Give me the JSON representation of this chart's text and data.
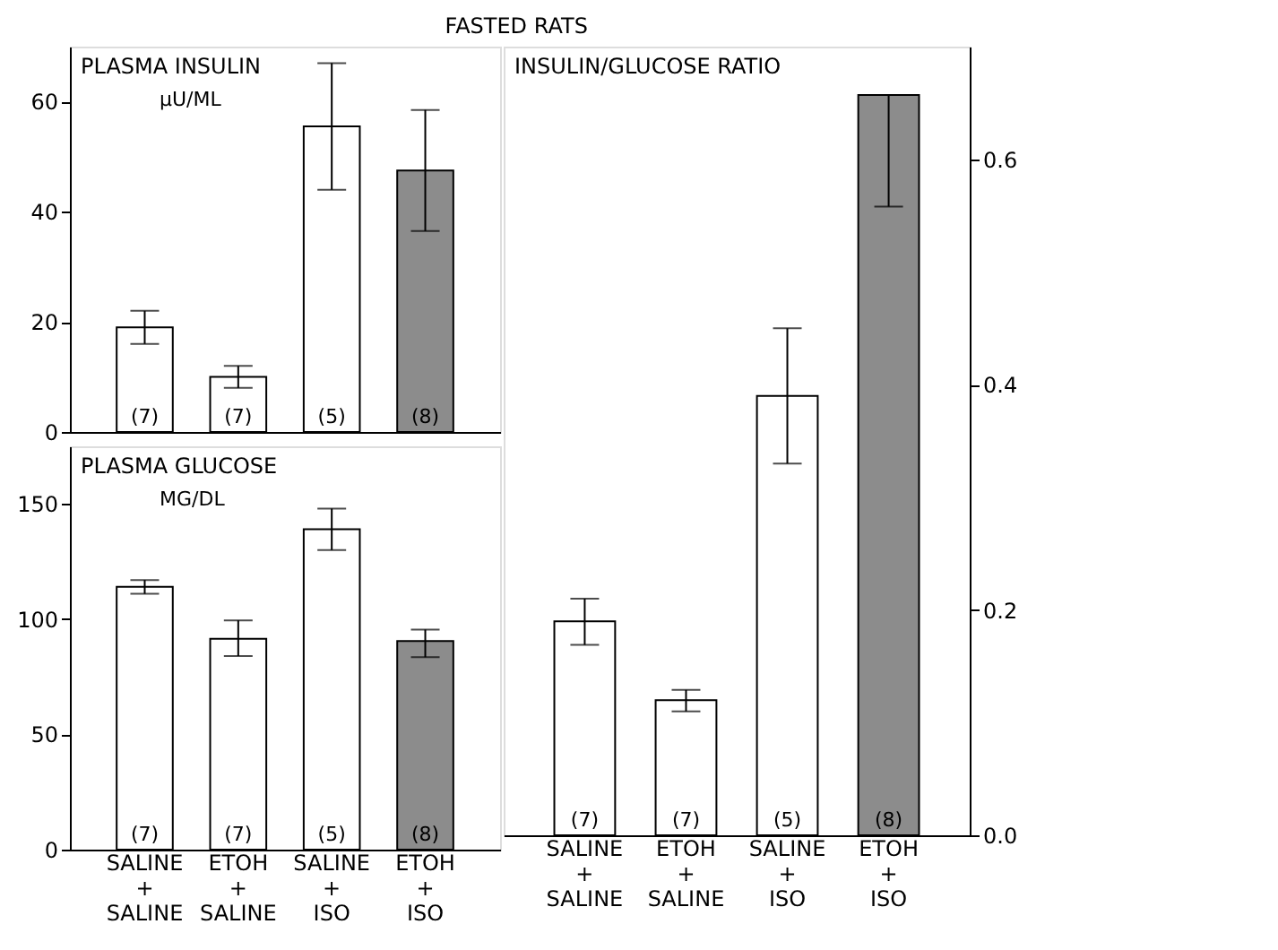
{
  "chart_data": [
    {
      "type": "bar",
      "title": "PLASMA INSULIN",
      "subtitle": "µU/ML",
      "categories": [
        null,
        null,
        null,
        null
      ],
      "series": [
        {
          "values": [
            19,
            10,
            55.5,
            47.5
          ],
          "errors": [
            [
              16,
              22
            ],
            [
              8,
              12
            ],
            [
              44,
              67
            ],
            [
              36.5,
              58.5
            ]
          ],
          "colors": [
            "#ffffff",
            "#ffffff",
            "#ffffff",
            "#8c8c8c"
          ]
        }
      ],
      "ylim": [
        0,
        70
      ],
      "yticks": [
        0,
        20,
        40,
        60
      ],
      "tick_labels": "y",
      "annotations": [
        "FASTED RATS",
        "(7)",
        "(7)",
        "(5)",
        "(8)"
      ]
    },
    {
      "type": "bar",
      "title": "PLASMA GLUCOSE",
      "subtitle": "MG/DL",
      "categories": [
        "SALINE + SALINE",
        "ETOH + SALINE",
        "SALINE + ISO",
        "ETOH + ISO"
      ],
      "series": [
        {
          "values": [
            114,
            91.5,
            139,
            90.5
          ],
          "errors": [
            [
              111,
              117
            ],
            [
              84,
              99.5
            ],
            [
              130,
              148
            ],
            [
              83.5,
              95.5
            ]
          ],
          "colors": [
            "#ffffff",
            "#ffffff",
            "#ffffff",
            "#8c8c8c"
          ]
        }
      ],
      "ylim": [
        0,
        175
      ],
      "yticks": [
        0,
        50,
        100,
        150
      ],
      "annotations": [
        "(7)",
        "(7)",
        "(5)",
        "(8)"
      ]
    },
    {
      "type": "bar",
      "title": "INSULIN/GLUCOSE RATIO",
      "categories": [
        "SALINE + SALINE",
        "ETOH + SALINE",
        "SALINE + ISO",
        "ETOH + ISO"
      ],
      "series": [
        {
          "axis": "y2",
          "values": [
            0.19,
            0.12,
            0.39,
            0.657
          ],
          "errors": [
            [
              0.169,
              0.21
            ],
            [
              0.11,
              0.129
            ],
            [
              0.33,
              0.45
            ],
            [
              0.558,
              0.657
            ]
          ],
          "colors": [
            "#ffffff",
            "#ffffff",
            "#ffffff",
            "#8c8c8c"
          ]
        }
      ],
      "y2lim": [
        0,
        0.7
      ],
      "y2ticks": [
        {
          "value": 0,
          "label": "0.0"
        },
        {
          "value": 0.2,
          "label": "0.2"
        },
        {
          "value": 0.4,
          "label": "0.4"
        },
        {
          "value": 0.6,
          "label": "0.6"
        }
      ],
      "annotations": [
        "(7)",
        "(7)",
        "(5)",
        "(8)"
      ]
    }
  ]
}
